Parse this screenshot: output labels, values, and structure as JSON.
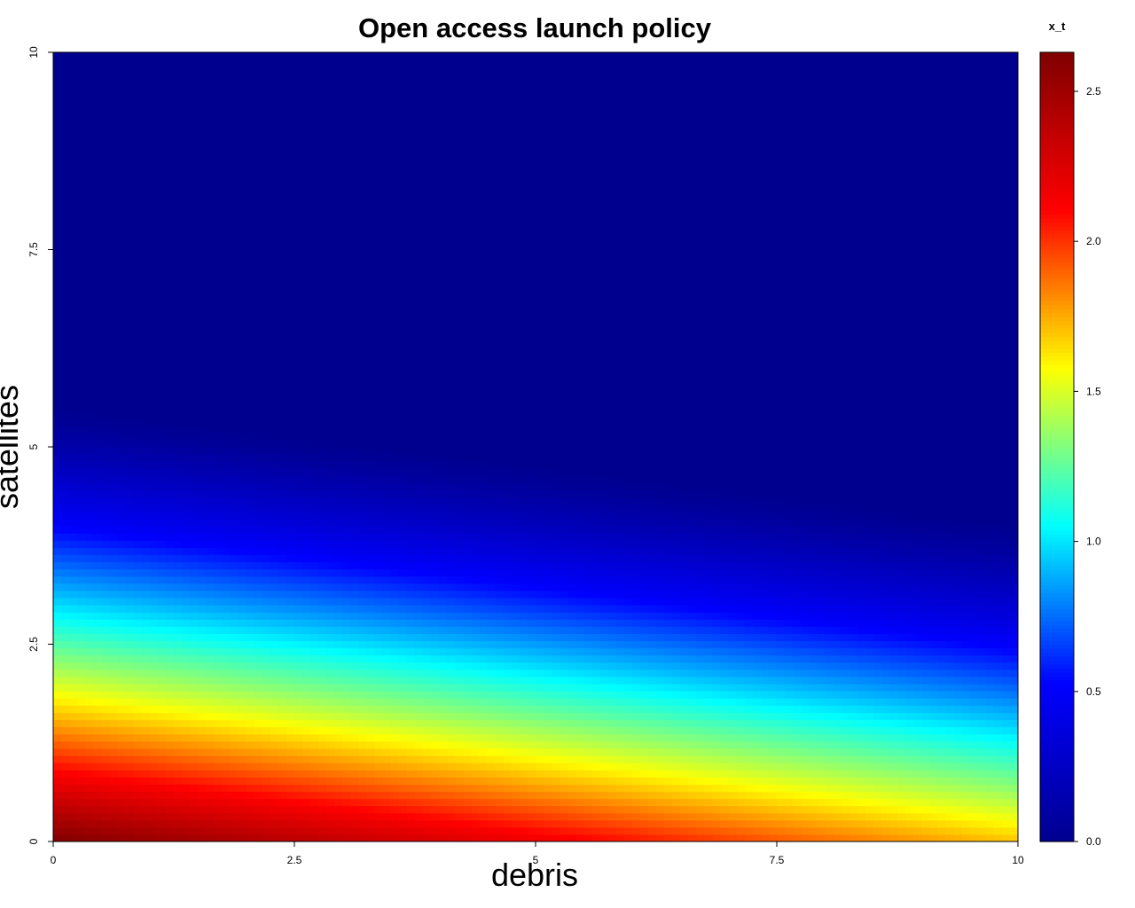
{
  "chart_data": {
    "type": "heatmap",
    "title": "Open access launch policy",
    "xlabel": "debris",
    "ylabel": "satellites",
    "xlim": [
      0,
      10
    ],
    "ylim": [
      0,
      10
    ],
    "x_ticks": [
      "0",
      "2.5",
      "5",
      "7.5",
      "10"
    ],
    "x_tick_values": [
      0,
      2.5,
      5,
      7.5,
      10
    ],
    "y_ticks": [
      "0",
      "2.5",
      "5",
      "7.5",
      "10"
    ],
    "y_tick_values": [
      0,
      2.5,
      5,
      7.5,
      10
    ],
    "colorbar": {
      "title": "x_t",
      "range": [
        0,
        2.63
      ],
      "ticks": [
        "0.0",
        "0.5",
        "1.0",
        "1.5",
        "2.0",
        "2.5"
      ],
      "tick_values": [
        0,
        0.5,
        1.0,
        1.5,
        2.0,
        2.5
      ],
      "colors": [
        "#00008F",
        "#0000FF",
        "#00FFFF",
        "#FFFF00",
        "#FF0000",
        "#800000"
      ]
    },
    "surface": {
      "description_points": [
        {
          "debris": 0,
          "satellites": 0,
          "x_t": 2.63
        },
        {
          "debris": 5,
          "satellites": 0,
          "x_t": 2.25
        },
        {
          "debris": 10,
          "satellites": 0,
          "x_t": 1.7
        },
        {
          "debris": 0,
          "satellites": 1.6,
          "x_t": 1.6
        },
        {
          "debris": 10,
          "satellites": 0.5,
          "x_t": 1.6
        },
        {
          "debris": 0,
          "satellites": 3.0,
          "x_t": 1.0
        },
        {
          "debris": 10,
          "satellites": 1.8,
          "x_t": 1.0
        },
        {
          "debris": 0,
          "satellites": 5.5,
          "x_t": 0.0
        },
        {
          "debris": 10,
          "satellites": 4.0,
          "x_t": 0.0
        }
      ]
    }
  }
}
